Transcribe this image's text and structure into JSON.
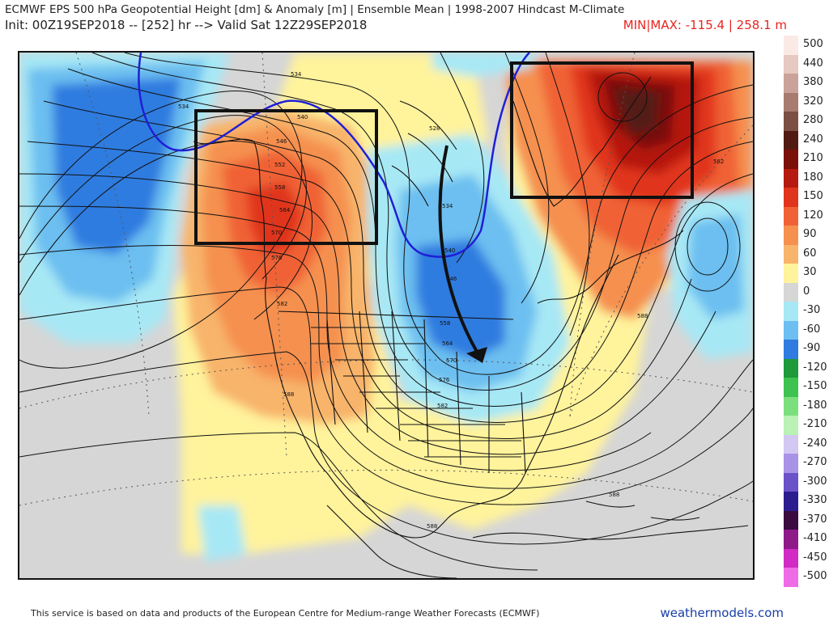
{
  "header": {
    "title_line1": "ECMWF EPS 500 hPa Geopotential Height [dm] & Anomaly [m] | Ensemble Mean | 1998-2007 Hindcast M-Climate",
    "title_line2": "Init: 00Z19SEP2018 -- [252] hr --> Valid Sat 12Z29SEP2018",
    "minmax": "MIN|MAX: -115.4 | 258.1 m"
  },
  "colorbar": [
    {
      "label": "500",
      "color": "#fbe9e6"
    },
    {
      "label": "440",
      "color": "#e6c9c1"
    },
    {
      "label": "380",
      "color": "#c9a399"
    },
    {
      "label": "320",
      "color": "#a77b6f"
    },
    {
      "label": "280",
      "color": "#7c4f43"
    },
    {
      "label": "240",
      "color": "#521b12"
    },
    {
      "label": "210",
      "color": "#7a1008"
    },
    {
      "label": "180",
      "color": "#b5190f"
    },
    {
      "label": "150",
      "color": "#e0341c"
    },
    {
      "label": "120",
      "color": "#f06236"
    },
    {
      "label": "90",
      "color": "#f5904f"
    },
    {
      "label": "60",
      "color": "#f8b46a"
    },
    {
      "label": "30",
      "color": "#fff39c"
    },
    {
      "label": "0",
      "color": "#d6d6d6"
    },
    {
      "label": "-30",
      "color": "#a7e8f5"
    },
    {
      "label": "-60",
      "color": "#6cbff0"
    },
    {
      "label": "-90",
      "color": "#2f7be0"
    },
    {
      "label": "-120",
      "color": "#1e9a3a"
    },
    {
      "label": "-150",
      "color": "#3ec250"
    },
    {
      "label": "-180",
      "color": "#7bdf7e"
    },
    {
      "label": "-210",
      "color": "#b9f2b4"
    },
    {
      "label": "-240",
      "color": "#d3c8f2"
    },
    {
      "label": "-270",
      "color": "#a893e6"
    },
    {
      "label": "-300",
      "color": "#6a52c8"
    },
    {
      "label": "-330",
      "color": "#2c1d8e"
    },
    {
      "label": "-370",
      "color": "#3a0b3f"
    },
    {
      "label": "-410",
      "color": "#8e1a8a"
    },
    {
      "label": "-450",
      "color": "#d22ac4"
    },
    {
      "label": "-500",
      "color": "#f06be6"
    }
  ],
  "contour_labels": {
    "c534a": "534",
    "c534b": "534",
    "c534c": "534",
    "c540a": "540",
    "c540b": "540",
    "c546a": "546",
    "c546b": "546",
    "c552": "552",
    "c558a": "558",
    "c558b": "558",
    "c564a": "564",
    "c564b": "564",
    "c570a": "570",
    "c570b": "570",
    "c576a": "576",
    "c576b": "576",
    "c582a": "582",
    "c582b": "582",
    "c582c": "582",
    "c588a": "588",
    "c588b": "588",
    "c588c": "588",
    "c588d": "588",
    "c528": "528"
  },
  "footer": {
    "notice": "This service is based on data and products of the European Centre for Medium-range Weather Forecasts (ECMWF)",
    "site": "weathermodels.com"
  }
}
